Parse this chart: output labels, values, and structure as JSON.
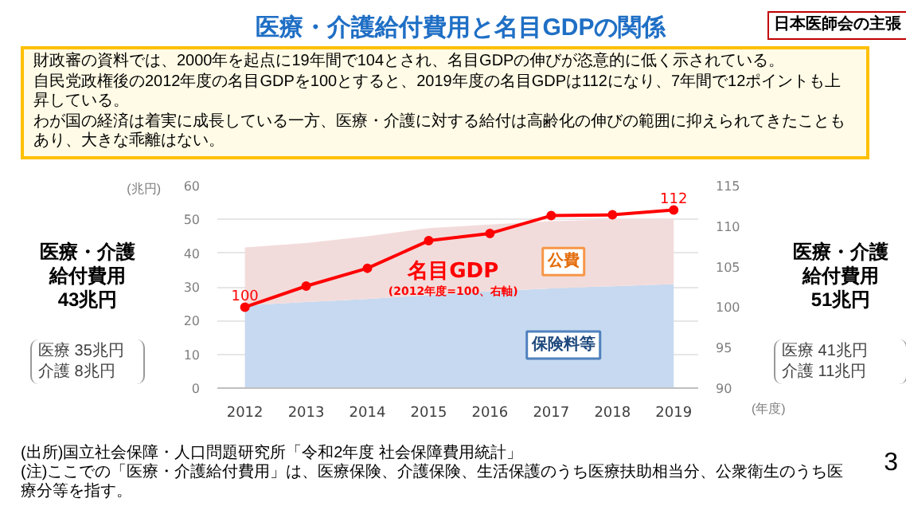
{
  "chart_data": {
    "type": "area",
    "title": "医療・介護給付費用と名目GDPの関係",
    "subtitle": "財政審の資料では、2000年を起点に19年間で104とされ、名目GDPの伸びが恣意的に低く示されている。自民党政権後の2012年度の名目GDPを100とすると、2019年度の名目GDPは112になり、7年間で12ポイントも上昇している。わが国の経済は着実に成長している一方、医療・介護に対する給付は高齢化の伸びの範囲に抑えられてきたこともあり、大きな乖離はない。",
    "ylabel": "(兆円)",
    "xlabel": "(年度)",
    "x": [
      2012,
      2013,
      2014,
      2015,
      2016,
      2017,
      2018,
      2019
    ],
    "stacked": true,
    "series": [
      {
        "name": "保険料等",
        "color": "#c6d9f0",
        "values": [
          24.5,
          25.5,
          26.4,
          27.6,
          28.7,
          29.5,
          30.2,
          30.8
        ]
      },
      {
        "name": "公費",
        "color": "#f2dcdb",
        "values": [
          17.2,
          17.5,
          18.6,
          19.8,
          19.8,
          20.0,
          19.8,
          19.4
        ]
      },
      {
        "name": "名目GDP",
        "type": "line",
        "axis": "y2",
        "color": "#ff0000",
        "marker": "circle",
        "values": [
          100,
          102.6,
          104.8,
          108.2,
          109.1,
          111.3,
          111.4,
          112
        ],
        "value_labels": [
          "100",
          null,
          null,
          null,
          null,
          null,
          null,
          "112"
        ]
      }
    ],
    "xlim": [
      2011.55,
      2019.4
    ],
    "xticks": [
      2012,
      2013,
      2014,
      2015,
      2016,
      2017,
      2018,
      2019
    ],
    "ylim": [
      0,
      60
    ],
    "yticks": [
      0,
      10,
      20,
      30,
      40,
      50,
      60
    ],
    "y2lim": [
      90,
      115
    ],
    "y2ticks": [
      90,
      95,
      100,
      105,
      110,
      115
    ],
    "grid": "y",
    "annotations": [
      "日本医師会の主張",
      "(2012年度=100、右軸)",
      "医療・介護給付費用",
      "43兆円",
      "医療 35兆円",
      "介護 8兆円",
      "医療・介護給付費用",
      "51兆円",
      "医療 41兆円",
      "介護 11兆円",
      "(出所)国立社会保障・人口問題研究所「令和2年度 社会保障費用統計」",
      "(注)ここでの「医療・介護給付費用」は、医療保険、介護保険、生活保護のうち医療扶助相当分、公衆衛生のうち医療分等を指す。",
      "3"
    ]
  }
}
